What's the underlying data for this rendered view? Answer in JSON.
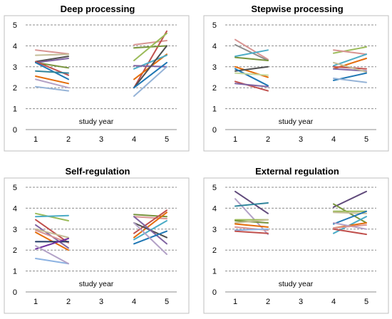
{
  "chart_data": [
    {
      "type": "line",
      "title": "Deep processing",
      "xlabel": "study year",
      "ylabel": "",
      "categories": [
        "1",
        "2",
        "3",
        "4",
        "5"
      ],
      "ylim": [
        0,
        5
      ],
      "yticks": [
        "0",
        "1",
        "2",
        "3",
        "4",
        "5"
      ],
      "grid": "horizontal dashed",
      "segments_note": "Each line connects year 1 to year 2, or year 4 to year 5",
      "series": [
        {
          "color": "#d99694",
          "x": [
            1,
            2
          ],
          "y": [
            3.8,
            3.62
          ]
        },
        {
          "color": "#c4bd97",
          "x": [
            1,
            2
          ],
          "y": [
            3.55,
            3.6
          ]
        },
        {
          "color": "#4f4f4f",
          "x": [
            1,
            2
          ],
          "y": [
            3.25,
            3.5
          ]
        },
        {
          "color": "#8064a2",
          "x": [
            1,
            2
          ],
          "y": [
            3.2,
            3.4
          ]
        },
        {
          "color": "#77933c",
          "x": [
            1,
            2
          ],
          "y": [
            3.2,
            2.95
          ]
        },
        {
          "color": "#c0504d",
          "x": [
            1,
            2
          ],
          "y": [
            3.25,
            2.6
          ]
        },
        {
          "color": "#1f77b4",
          "x": [
            1,
            2
          ],
          "y": [
            3.2,
            2.4
          ]
        },
        {
          "color": "#31859c",
          "x": [
            1,
            2
          ],
          "y": [
            2.8,
            2.7
          ]
        },
        {
          "color": "#e46c0a",
          "x": [
            1,
            2
          ],
          "y": [
            2.55,
            2.2
          ]
        },
        {
          "color": "#b3a2c7",
          "x": [
            1,
            2
          ],
          "y": [
            2.4,
            2.0
          ]
        },
        {
          "color": "#95b3d7",
          "x": [
            1,
            2
          ],
          "y": [
            2.05,
            1.85
          ]
        },
        {
          "color": "#d99694",
          "x": [
            4,
            5
          ],
          "y": [
            4.05,
            4.25
          ]
        },
        {
          "color": "#c0504d",
          "x": [
            4,
            5
          ],
          "y": [
            2.0,
            4.7
          ]
        },
        {
          "color": "#77933c",
          "x": [
            4,
            5
          ],
          "y": [
            3.9,
            4.0
          ]
        },
        {
          "color": "#9bbb59",
          "x": [
            4,
            5
          ],
          "y": [
            3.3,
            4.6
          ]
        },
        {
          "color": "#e46c0a",
          "x": [
            4,
            5
          ],
          "y": [
            2.4,
            3.6
          ]
        },
        {
          "color": "#4bacc6",
          "x": [
            4,
            5
          ],
          "y": [
            2.9,
            3.55
          ]
        },
        {
          "color": "#8064a2",
          "x": [
            4,
            5
          ],
          "y": [
            3.05,
            3.0
          ]
        },
        {
          "color": "#4f4f4f",
          "x": [
            4,
            5
          ],
          "y": [
            2.0,
            4.0
          ]
        },
        {
          "color": "#1f77b4",
          "x": [
            4,
            5
          ],
          "y": [
            2.0,
            3.2
          ]
        },
        {
          "color": "#95b3d7",
          "x": [
            4,
            5
          ],
          "y": [
            1.6,
            3.0
          ]
        }
      ]
    },
    {
      "type": "line",
      "title": "Stepwise processing",
      "xlabel": "study year",
      "ylabel": "",
      "categories": [
        "1",
        "2",
        "3",
        "4",
        "5"
      ],
      "ylim": [
        0,
        5
      ],
      "yticks": [
        "0",
        "1",
        "2",
        "3",
        "4",
        "5"
      ],
      "grid": "horizontal dashed",
      "series": [
        {
          "color": "#d99694",
          "x": [
            1,
            2
          ],
          "y": [
            4.3,
            3.35
          ]
        },
        {
          "color": "#8c8c8c",
          "x": [
            1,
            2
          ],
          "y": [
            4.05,
            3.3
          ]
        },
        {
          "color": "#4bacc6",
          "x": [
            1,
            2
          ],
          "y": [
            3.5,
            3.8
          ]
        },
        {
          "color": "#77933c",
          "x": [
            1,
            2
          ],
          "y": [
            3.45,
            3.3
          ]
        },
        {
          "color": "#e46c0a",
          "x": [
            1,
            2
          ],
          "y": [
            3.0,
            2.5
          ]
        },
        {
          "color": "#4f4f4f",
          "x": [
            1,
            2
          ],
          "y": [
            2.8,
            3.0
          ]
        },
        {
          "color": "#1f77b4",
          "x": [
            1,
            2
          ],
          "y": [
            2.9,
            2.1
          ]
        },
        {
          "color": "#c4d79b",
          "x": [
            1,
            2
          ],
          "y": [
            2.7,
            2.6
          ]
        },
        {
          "color": "#c0504d",
          "x": [
            1,
            2
          ],
          "y": [
            2.3,
            1.85
          ]
        },
        {
          "color": "#8064a2",
          "x": [
            1,
            2
          ],
          "y": [
            2.2,
            2.05
          ]
        },
        {
          "color": "#9bbb59",
          "x": [
            4,
            5
          ],
          "y": [
            3.65,
            3.95
          ]
        },
        {
          "color": "#d99694",
          "x": [
            4,
            5
          ],
          "y": [
            3.8,
            3.6
          ]
        },
        {
          "color": "#4bacc6",
          "x": [
            4,
            5
          ],
          "y": [
            3.05,
            3.6
          ]
        },
        {
          "color": "#e46c0a",
          "x": [
            4,
            5
          ],
          "y": [
            2.9,
            3.4
          ]
        },
        {
          "color": "#c0504d",
          "x": [
            4,
            5
          ],
          "y": [
            3.0,
            2.9
          ]
        },
        {
          "color": "#8064a2",
          "x": [
            4,
            5
          ],
          "y": [
            2.9,
            2.8
          ]
        },
        {
          "color": "#c4bd97",
          "x": [
            4,
            5
          ],
          "y": [
            3.2,
            2.75
          ]
        },
        {
          "color": "#1f77b4",
          "x": [
            4,
            5
          ],
          "y": [
            2.35,
            2.7
          ]
        },
        {
          "color": "#95b3d7",
          "x": [
            4,
            5
          ],
          "y": [
            2.45,
            2.25
          ]
        }
      ]
    },
    {
      "type": "line",
      "title": "Self-regulation",
      "xlabel": "study year",
      "ylabel": "",
      "categories": [
        "1",
        "2",
        "3",
        "4",
        "5"
      ],
      "ylim": [
        0,
        5
      ],
      "yticks": [
        "0",
        "1",
        "2",
        "3",
        "4",
        "5"
      ],
      "grid": "horizontal dashed",
      "series": [
        {
          "color": "#9bbb59",
          "x": [
            1,
            2
          ],
          "y": [
            3.75,
            3.4
          ]
        },
        {
          "color": "#4bacc6",
          "x": [
            1,
            2
          ],
          "y": [
            3.6,
            3.65
          ]
        },
        {
          "color": "#c0504d",
          "x": [
            1,
            2
          ],
          "y": [
            3.45,
            2.35
          ]
        },
        {
          "color": "#8064a2",
          "x": [
            1,
            2
          ],
          "y": [
            3.2,
            2.1
          ]
        },
        {
          "color": "#e46c0a",
          "x": [
            1,
            2
          ],
          "y": [
            2.85,
            2.0
          ]
        },
        {
          "color": "#c4bd97",
          "x": [
            1,
            2
          ],
          "y": [
            3.0,
            2.6
          ]
        },
        {
          "color": "#d99694",
          "x": [
            1,
            2
          ],
          "y": [
            2.95,
            2.35
          ]
        },
        {
          "color": "#1f3864",
          "x": [
            1,
            2
          ],
          "y": [
            2.4,
            2.4
          ]
        },
        {
          "color": "#7030a0",
          "x": [
            1,
            2
          ],
          "y": [
            2.05,
            2.55
          ]
        },
        {
          "color": "#8db3e2",
          "x": [
            1,
            2
          ],
          "y": [
            1.6,
            1.35
          ]
        },
        {
          "color": "#b3a2c7",
          "x": [
            1,
            2
          ],
          "y": [
            2.2,
            1.35
          ]
        },
        {
          "color": "#77933c",
          "x": [
            4,
            5
          ],
          "y": [
            3.7,
            3.6
          ]
        },
        {
          "color": "#d99694",
          "x": [
            4,
            5
          ],
          "y": [
            3.6,
            3.5
          ]
        },
        {
          "color": "#c0504d",
          "x": [
            4,
            5
          ],
          "y": [
            2.8,
            3.9
          ]
        },
        {
          "color": "#e46c0a",
          "x": [
            4,
            5
          ],
          "y": [
            2.6,
            3.8
          ]
        },
        {
          "color": "#4bacc6",
          "x": [
            4,
            5
          ],
          "y": [
            2.5,
            3.4
          ]
        },
        {
          "color": "#4f4f4f",
          "x": [
            4,
            5
          ],
          "y": [
            3.3,
            2.6
          ]
        },
        {
          "color": "#8064a2",
          "x": [
            4,
            5
          ],
          "y": [
            3.6,
            2.3
          ]
        },
        {
          "color": "#1f77b4",
          "x": [
            4,
            5
          ],
          "y": [
            2.3,
            2.9
          ]
        },
        {
          "color": "#b3a2c7",
          "x": [
            4,
            5
          ],
          "y": [
            3.3,
            1.8
          ]
        }
      ]
    },
    {
      "type": "line",
      "title": "External regulation",
      "xlabel": "study year",
      "ylabel": "",
      "categories": [
        "1",
        "2",
        "3",
        "4",
        "5"
      ],
      "ylim": [
        0,
        5
      ],
      "yticks": [
        "0",
        "1",
        "2",
        "3",
        "4",
        "5"
      ],
      "grid": "horizontal dashed",
      "series": [
        {
          "color": "#604a7b",
          "x": [
            1,
            2
          ],
          "y": [
            4.8,
            3.75
          ]
        },
        {
          "color": "#b3a2c7",
          "x": [
            1,
            2
          ],
          "y": [
            4.45,
            2.75
          ]
        },
        {
          "color": "#31859c",
          "x": [
            1,
            2
          ],
          "y": [
            4.1,
            4.25
          ]
        },
        {
          "color": "#9bbb59",
          "x": [
            1,
            2
          ],
          "y": [
            3.45,
            3.45
          ]
        },
        {
          "color": "#77933c",
          "x": [
            1,
            2
          ],
          "y": [
            3.4,
            3.3
          ]
        },
        {
          "color": "#c4bd97",
          "x": [
            1,
            2
          ],
          "y": [
            3.3,
            3.45
          ]
        },
        {
          "color": "#e46c0a",
          "x": [
            1,
            2
          ],
          "y": [
            3.25,
            3.1
          ]
        },
        {
          "color": "#d99694",
          "x": [
            1,
            2
          ],
          "y": [
            3.1,
            2.95
          ]
        },
        {
          "color": "#8db3e2",
          "x": [
            1,
            2
          ],
          "y": [
            2.95,
            3.0
          ]
        },
        {
          "color": "#c0504d",
          "x": [
            1,
            2
          ],
          "y": [
            2.9,
            2.8
          ]
        },
        {
          "color": "#604a7b",
          "x": [
            4,
            5
          ],
          "y": [
            4.05,
            4.8
          ]
        },
        {
          "color": "#77933c",
          "x": [
            4,
            5
          ],
          "y": [
            4.2,
            3.3
          ]
        },
        {
          "color": "#9bbb59",
          "x": [
            4,
            5
          ],
          "y": [
            3.85,
            3.85
          ]
        },
        {
          "color": "#c4bd97",
          "x": [
            4,
            5
          ],
          "y": [
            3.8,
            3.75
          ]
        },
        {
          "color": "#1f77b4",
          "x": [
            4,
            5
          ],
          "y": [
            3.25,
            3.85
          ]
        },
        {
          "color": "#4bacc6",
          "x": [
            4,
            5
          ],
          "y": [
            2.8,
            3.6
          ]
        },
        {
          "color": "#e46c0a",
          "x": [
            4,
            5
          ],
          "y": [
            3.05,
            3.3
          ]
        },
        {
          "color": "#b3a2c7",
          "x": [
            4,
            5
          ],
          "y": [
            3.3,
            3.0
          ]
        },
        {
          "color": "#c0504d",
          "x": [
            4,
            5
          ],
          "y": [
            3.0,
            2.75
          ]
        },
        {
          "color": "#d99694",
          "x": [
            4,
            5
          ],
          "y": [
            3.05,
            3.2
          ]
        }
      ]
    }
  ]
}
